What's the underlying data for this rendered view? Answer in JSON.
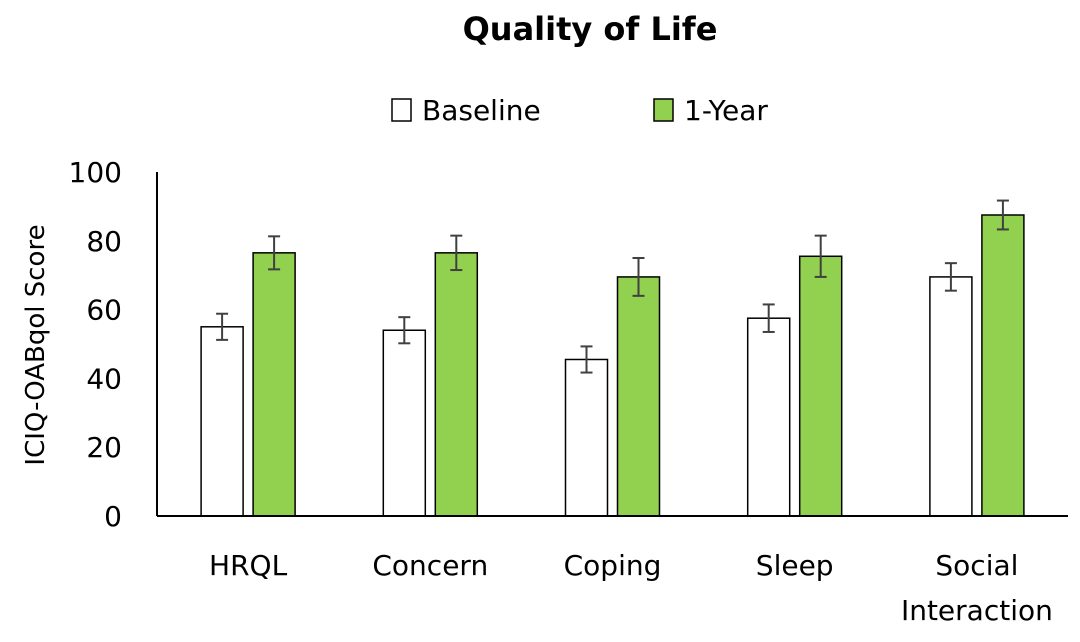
{
  "chart_data": {
    "type": "bar",
    "title": "Quality of Life",
    "ylabel": "ICIQ-OABqol Score",
    "xlabel": "",
    "ylim": [
      0,
      100
    ],
    "yticks": [
      0,
      20,
      40,
      60,
      80,
      100
    ],
    "categories": [
      "HRQL",
      "Concern",
      "Coping",
      "Sleep",
      "Social Interaction"
    ],
    "category_label_lines": [
      [
        "HRQL"
      ],
      [
        "Concern"
      ],
      [
        "Coping"
      ],
      [
        "Sleep"
      ],
      [
        "Social",
        "Interaction"
      ]
    ],
    "legend_position": "top",
    "grid": false,
    "series": [
      {
        "name": "Baseline",
        "color": "#ffffff",
        "values": [
          55,
          54,
          45.5,
          57.5,
          69.5
        ],
        "error": [
          3.8,
          3.8,
          3.8,
          4,
          4
        ]
      },
      {
        "name": "1-Year",
        "color": "#92d050",
        "values": [
          76.5,
          76.5,
          69.5,
          75.5,
          87.5
        ],
        "error": [
          4.8,
          5,
          5.5,
          6,
          4.2
        ]
      }
    ]
  }
}
